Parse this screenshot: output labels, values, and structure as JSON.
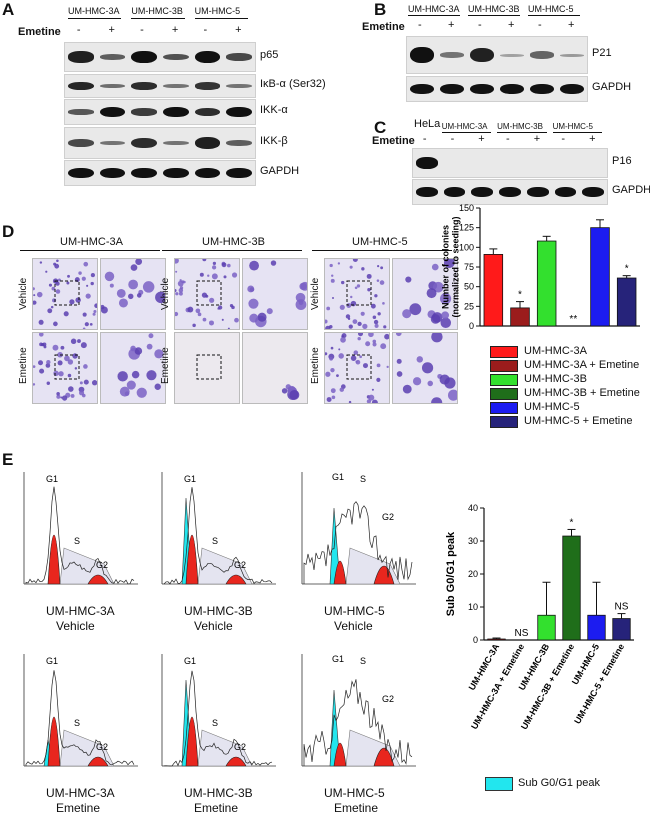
{
  "panel_A": {
    "letter": "A",
    "cell_lines": [
      "UM-HMC-3A",
      "UM-HMC-3B",
      "UM-HMC-5"
    ],
    "treatment_label": "Emetine",
    "lane_signs": [
      "-",
      "+",
      "-",
      "+",
      "-",
      "+"
    ],
    "blots": [
      "p65",
      "IκB-α (Ser32)",
      "IKK-α",
      "IKK-β",
      "GAPDH"
    ]
  },
  "panel_B": {
    "letter": "B",
    "cell_lines": [
      "UM-HMC-3A",
      "UM-HMC-3B",
      "UM-HMC-5"
    ],
    "treatment_label": "Emetine",
    "lane_signs": [
      "-",
      "+",
      "-",
      "+",
      "-",
      "+"
    ],
    "blots": [
      "P21",
      "GAPDH"
    ]
  },
  "panel_C": {
    "letter": "C",
    "cell_lines": [
      "HeLa",
      "UM-HMC-3A",
      "UM-HMC-3B",
      "UM-HMC-5"
    ],
    "treatment_label": "Emetine",
    "lane_signs": [
      "-",
      "-",
      "+",
      "-",
      "+",
      "-",
      "+"
    ],
    "blots": [
      "P16",
      "GAPDH"
    ]
  },
  "panel_D": {
    "letter": "D",
    "cell_lines": [
      "UM-HMC-3A",
      "UM-HMC-3B",
      "UM-HMC-5"
    ],
    "row_labels": [
      "Vehicle",
      "Emetine"
    ],
    "chart_data": {
      "type": "bar",
      "categories": [
        "UM-HMC-3A",
        "UM-HMC-3A + Emetine",
        "UM-HMC-3B",
        "UM-HMC-3B + Emetine",
        "UM-HMC-5",
        "UM-HMC-5 + Emetine"
      ],
      "values": [
        91,
        23,
        108,
        0,
        125,
        61
      ],
      "errors": [
        7,
        8,
        6,
        0,
        10,
        3
      ],
      "annotations": [
        "",
        "*",
        "",
        "**",
        "",
        "*"
      ],
      "colors": [
        "#ff1a1a",
        "#9b1c1c",
        "#33e02e",
        "#1f6e1a",
        "#1c1cf0",
        "#26237a"
      ],
      "ylabel": "Number of colonies (normalized to seeding)",
      "ylim": [
        0,
        150
      ],
      "yticks": [
        "0",
        "25",
        "50",
        "75",
        "100",
        "125",
        "150"
      ]
    },
    "legend": [
      "UM-HMC-3A",
      "UM-HMC-3A + Emetine",
      "UM-HMC-3B",
      "UM-HMC-3B + Emetine",
      "UM-HMC-5",
      "UM-HMC-5 + Emetine"
    ]
  },
  "panel_E": {
    "letter": "E",
    "histograms": [
      {
        "line": "UM-HMC-3A",
        "cond": "Vehicle",
        "peaks": [
          "G1",
          "S",
          "G2"
        ]
      },
      {
        "line": "UM-HMC-3B",
        "cond": "Vehicle",
        "peaks": [
          "G1",
          "S",
          "G2"
        ]
      },
      {
        "line": "UM-HMC-5",
        "cond": "Vehicle",
        "peaks": [
          "G1",
          "S",
          "G2"
        ]
      },
      {
        "line": "UM-HMC-3A",
        "cond": "Emetine",
        "peaks": [
          "G1",
          "S",
          "G2"
        ]
      },
      {
        "line": "UM-HMC-3B",
        "cond": "Emetine",
        "peaks": [
          "G1",
          "S",
          "G2"
        ]
      },
      {
        "line": "UM-HMC-5",
        "cond": "Emetine",
        "peaks": [
          "G1",
          "S",
          "G2"
        ]
      }
    ],
    "chart_data": {
      "type": "bar",
      "categories": [
        "UM-HMC-3A",
        "UM-HMC-3A + Emetine",
        "UM-HMC-3B",
        "UM-HMC-3B + Emetine",
        "UM-HMC-5",
        "UM-HMC-5 + Emetine"
      ],
      "values": [
        0.3,
        0,
        7.5,
        31.5,
        7.5,
        6.5
      ],
      "errors": [
        0.3,
        0,
        10,
        2,
        10,
        1.5
      ],
      "annotations": [
        "",
        "NS",
        "",
        "*",
        "",
        "NS"
      ],
      "colors": [
        "#ff1a1a",
        "#9b1c1c",
        "#33e02e",
        "#1f6e1a",
        "#1c1cf0",
        "#26237a"
      ],
      "ylabel": "Sub G0/G1 peak",
      "ylim": [
        0,
        40
      ],
      "yticks": [
        "0",
        "10",
        "20",
        "30",
        "40"
      ]
    },
    "legend_label": "Sub G0/G1 peak"
  }
}
